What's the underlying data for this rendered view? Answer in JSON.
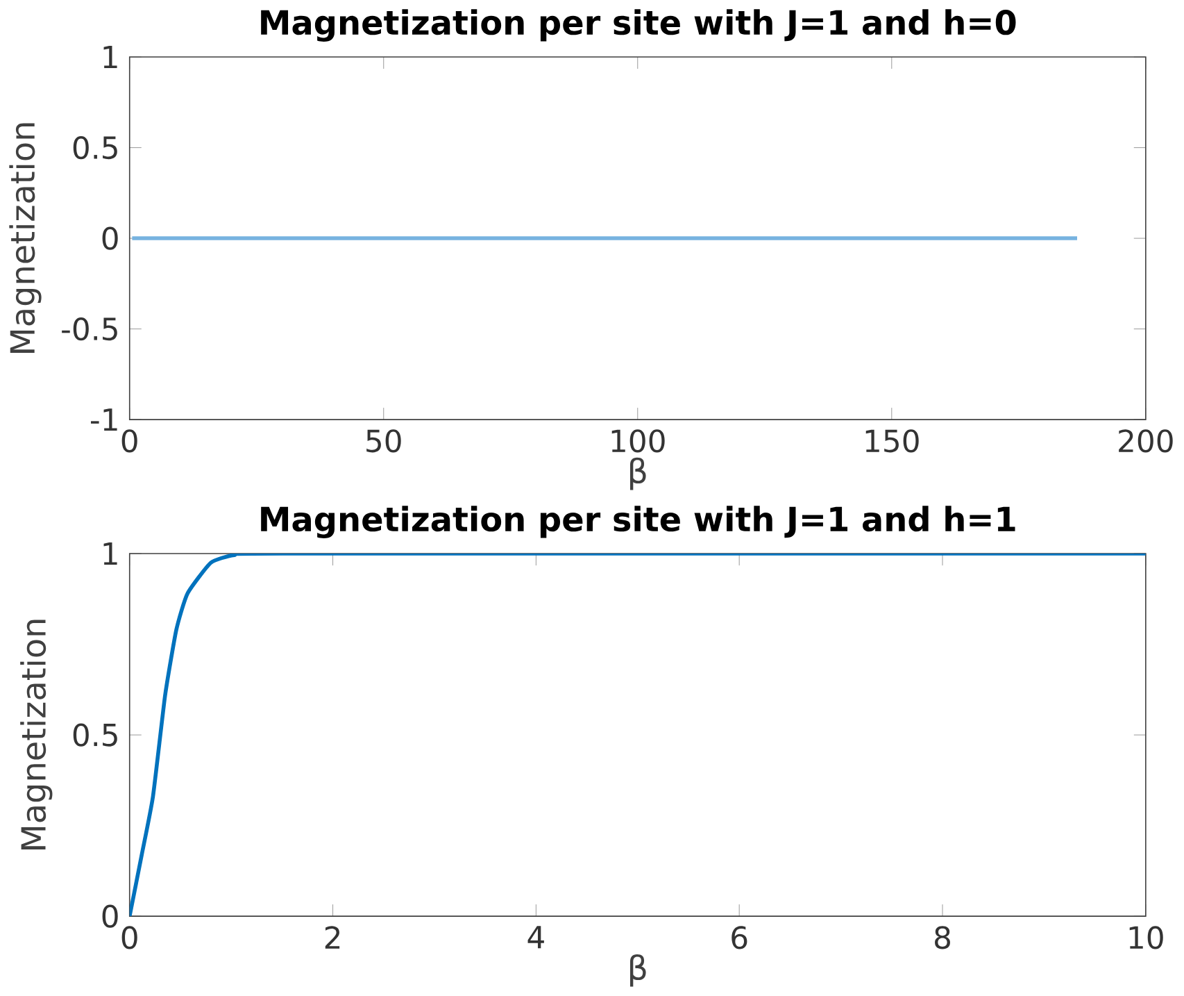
{
  "chart_data": [
    {
      "type": "line",
      "title": "Magnetization per site with J=1 and h=0",
      "xlabel": "β",
      "ylabel": "Magnetization",
      "x": [
        0.5,
        186.5
      ],
      "values": [
        0,
        0
      ],
      "color": "#77b3e0",
      "xlim": [
        0,
        200
      ],
      "ylim": [
        -1,
        1
      ],
      "xticks": [
        0,
        50,
        100,
        150,
        200
      ],
      "yticks": [
        -1,
        -0.5,
        0,
        0.5,
        1
      ]
    },
    {
      "type": "line",
      "title": "Magnetization per site with J=1 and h=1",
      "xlabel": "β",
      "ylabel": "Magnetization",
      "x": [
        0,
        0.12,
        0.23,
        0.35,
        0.46,
        0.57,
        0.8,
        1.03,
        1.5,
        10
      ],
      "values": [
        0,
        0.17,
        0.33,
        0.61,
        0.79,
        0.89,
        0.975,
        0.996,
        1,
        1
      ],
      "color": "#0072bd",
      "xlim": [
        0,
        10
      ],
      "ylim": [
        0,
        1
      ],
      "xticks": [
        0,
        2,
        4,
        6,
        8,
        10
      ],
      "yticks": [
        0,
        0.5,
        1
      ]
    }
  ]
}
